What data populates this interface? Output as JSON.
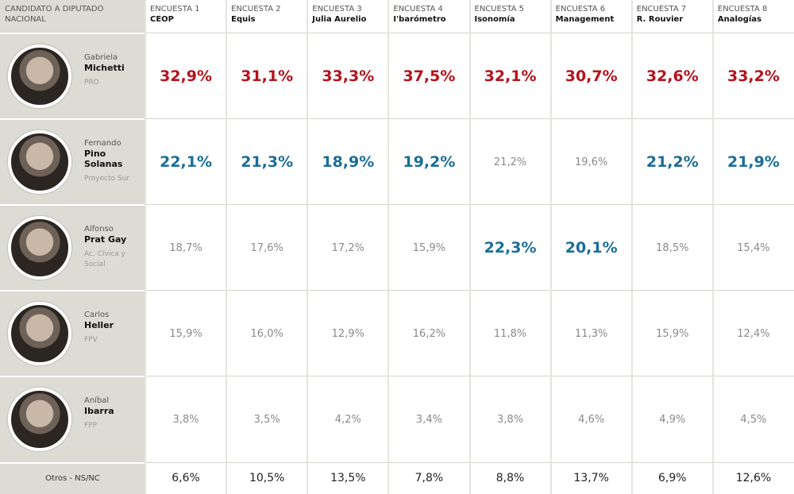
{
  "header": {
    "title": "CANDIDATO A DIPUTADO NACIONAL"
  },
  "polls": [
    {
      "label": "ENCUESTA 1",
      "name": "CEOP"
    },
    {
      "label": "ENCUESTA 2",
      "name": "Equis"
    },
    {
      "label": "ENCUESTA 3",
      "name": "Julia Aurelio"
    },
    {
      "label": "ENCUESTA 4",
      "name": "I'barómetro"
    },
    {
      "label": "ENCUESTA 5",
      "name": "Isonomía"
    },
    {
      "label": "ENCUESTA 6",
      "name": "Management"
    },
    {
      "label": "ENCUESTA 7",
      "name": "R. Rouvier"
    },
    {
      "label": "ENCUESTA 8",
      "name": "Analogías"
    }
  ],
  "rows": [
    {
      "first_name": "Gabriela",
      "surname": "Michetti",
      "party": "PRO",
      "cells": [
        {
          "text": "32,9%",
          "color": "#b5121b",
          "bold": true
        },
        {
          "text": "31,1%",
          "color": "#b5121b",
          "bold": true
        },
        {
          "text": "33,3%",
          "color": "#b5121b",
          "bold": true
        },
        {
          "text": "37,5%",
          "color": "#b5121b",
          "bold": true
        },
        {
          "text": "32,1%",
          "color": "#b5121b",
          "bold": true
        },
        {
          "text": "30,7%",
          "color": "#b5121b",
          "bold": true
        },
        {
          "text": "32,6%",
          "color": "#b5121b",
          "bold": true
        },
        {
          "text": "33,2%",
          "color": "#b5121b",
          "bold": true
        }
      ]
    },
    {
      "first_name": "Fernando",
      "surname": "Pino Solanas",
      "party": "Proyecto Sur",
      "cells": [
        {
          "text": "22,1%",
          "color": "#1a6d9a",
          "bold": true
        },
        {
          "text": "21,3%",
          "color": "#1a6d9a",
          "bold": true
        },
        {
          "text": "18,9%",
          "color": "#1a6d9a",
          "bold": true
        },
        {
          "text": "19,2%",
          "color": "#1a6d9a",
          "bold": true
        },
        {
          "text": "21,2%",
          "color": "#8a8a8a",
          "bold": false
        },
        {
          "text": "19,6%",
          "color": "#8a8a8a",
          "bold": false
        },
        {
          "text": "21,2%",
          "color": "#1a6d9a",
          "bold": true
        },
        {
          "text": "21,9%",
          "color": "#1a6d9a",
          "bold": true
        }
      ]
    },
    {
      "first_name": "Alfonso",
      "surname": "Prat Gay",
      "party": "Ac. Cívica y Social",
      "cells": [
        {
          "text": "18,7%",
          "color": "#8a8a8a",
          "bold": false
        },
        {
          "text": "17,6%",
          "color": "#8a8a8a",
          "bold": false
        },
        {
          "text": "17,2%",
          "color": "#8a8a8a",
          "bold": false
        },
        {
          "text": "15,9%",
          "color": "#8a8a8a",
          "bold": false
        },
        {
          "text": "22,3%",
          "color": "#1a6d9a",
          "bold": true
        },
        {
          "text": "20,1%",
          "color": "#1a6d9a",
          "bold": true
        },
        {
          "text": "18,5%",
          "color": "#8a8a8a",
          "bold": false
        },
        {
          "text": "15,4%",
          "color": "#8a8a8a",
          "bold": false
        }
      ]
    },
    {
      "first_name": "Carlos",
      "surname": "Heller",
      "party": "FPV",
      "cells": [
        {
          "text": "15,9%",
          "color": "#8a8a8a",
          "bold": false
        },
        {
          "text": "16,0%",
          "color": "#8a8a8a",
          "bold": false
        },
        {
          "text": "12,9%",
          "color": "#8a8a8a",
          "bold": false
        },
        {
          "text": "16,2%",
          "color": "#8a8a8a",
          "bold": false
        },
        {
          "text": "11,8%",
          "color": "#8a8a8a",
          "bold": false
        },
        {
          "text": "11,3%",
          "color": "#8a8a8a",
          "bold": false
        },
        {
          "text": "15,9%",
          "color": "#8a8a8a",
          "bold": false
        },
        {
          "text": "12,4%",
          "color": "#8a8a8a",
          "bold": false
        }
      ]
    },
    {
      "first_name": "Aníbal",
      "surname": "Ibarra",
      "party": "FPP",
      "cells": [
        {
          "text": "3,8%",
          "color": "#8a8a8a",
          "bold": false
        },
        {
          "text": "3,5%",
          "color": "#8a8a8a",
          "bold": false
        },
        {
          "text": "4,2%",
          "color": "#8a8a8a",
          "bold": false
        },
        {
          "text": "3,4%",
          "color": "#8a8a8a",
          "bold": false
        },
        {
          "text": "3,8%",
          "color": "#8a8a8a",
          "bold": false
        },
        {
          "text": "4,6%",
          "color": "#8a8a8a",
          "bold": false
        },
        {
          "text": "4,9%",
          "color": "#8a8a8a",
          "bold": false
        },
        {
          "text": "4,5%",
          "color": "#8a8a8a",
          "bold": false
        }
      ]
    }
  ],
  "others": {
    "label": "Otros - NS/NC",
    "cells": [
      {
        "text": "6,6%",
        "color": "#222222",
        "bold": false
      },
      {
        "text": "10,5%",
        "color": "#222222",
        "bold": false
      },
      {
        "text": "13,5%",
        "color": "#222222",
        "bold": false
      },
      {
        "text": "7,8%",
        "color": "#222222",
        "bold": false
      },
      {
        "text": "8,8%",
        "color": "#222222",
        "bold": false
      },
      {
        "text": "13,7%",
        "color": "#222222",
        "bold": false
      },
      {
        "text": "6,9%",
        "color": "#222222",
        "bold": false
      },
      {
        "text": "12,6%",
        "color": "#222222",
        "bold": false
      }
    ]
  }
}
